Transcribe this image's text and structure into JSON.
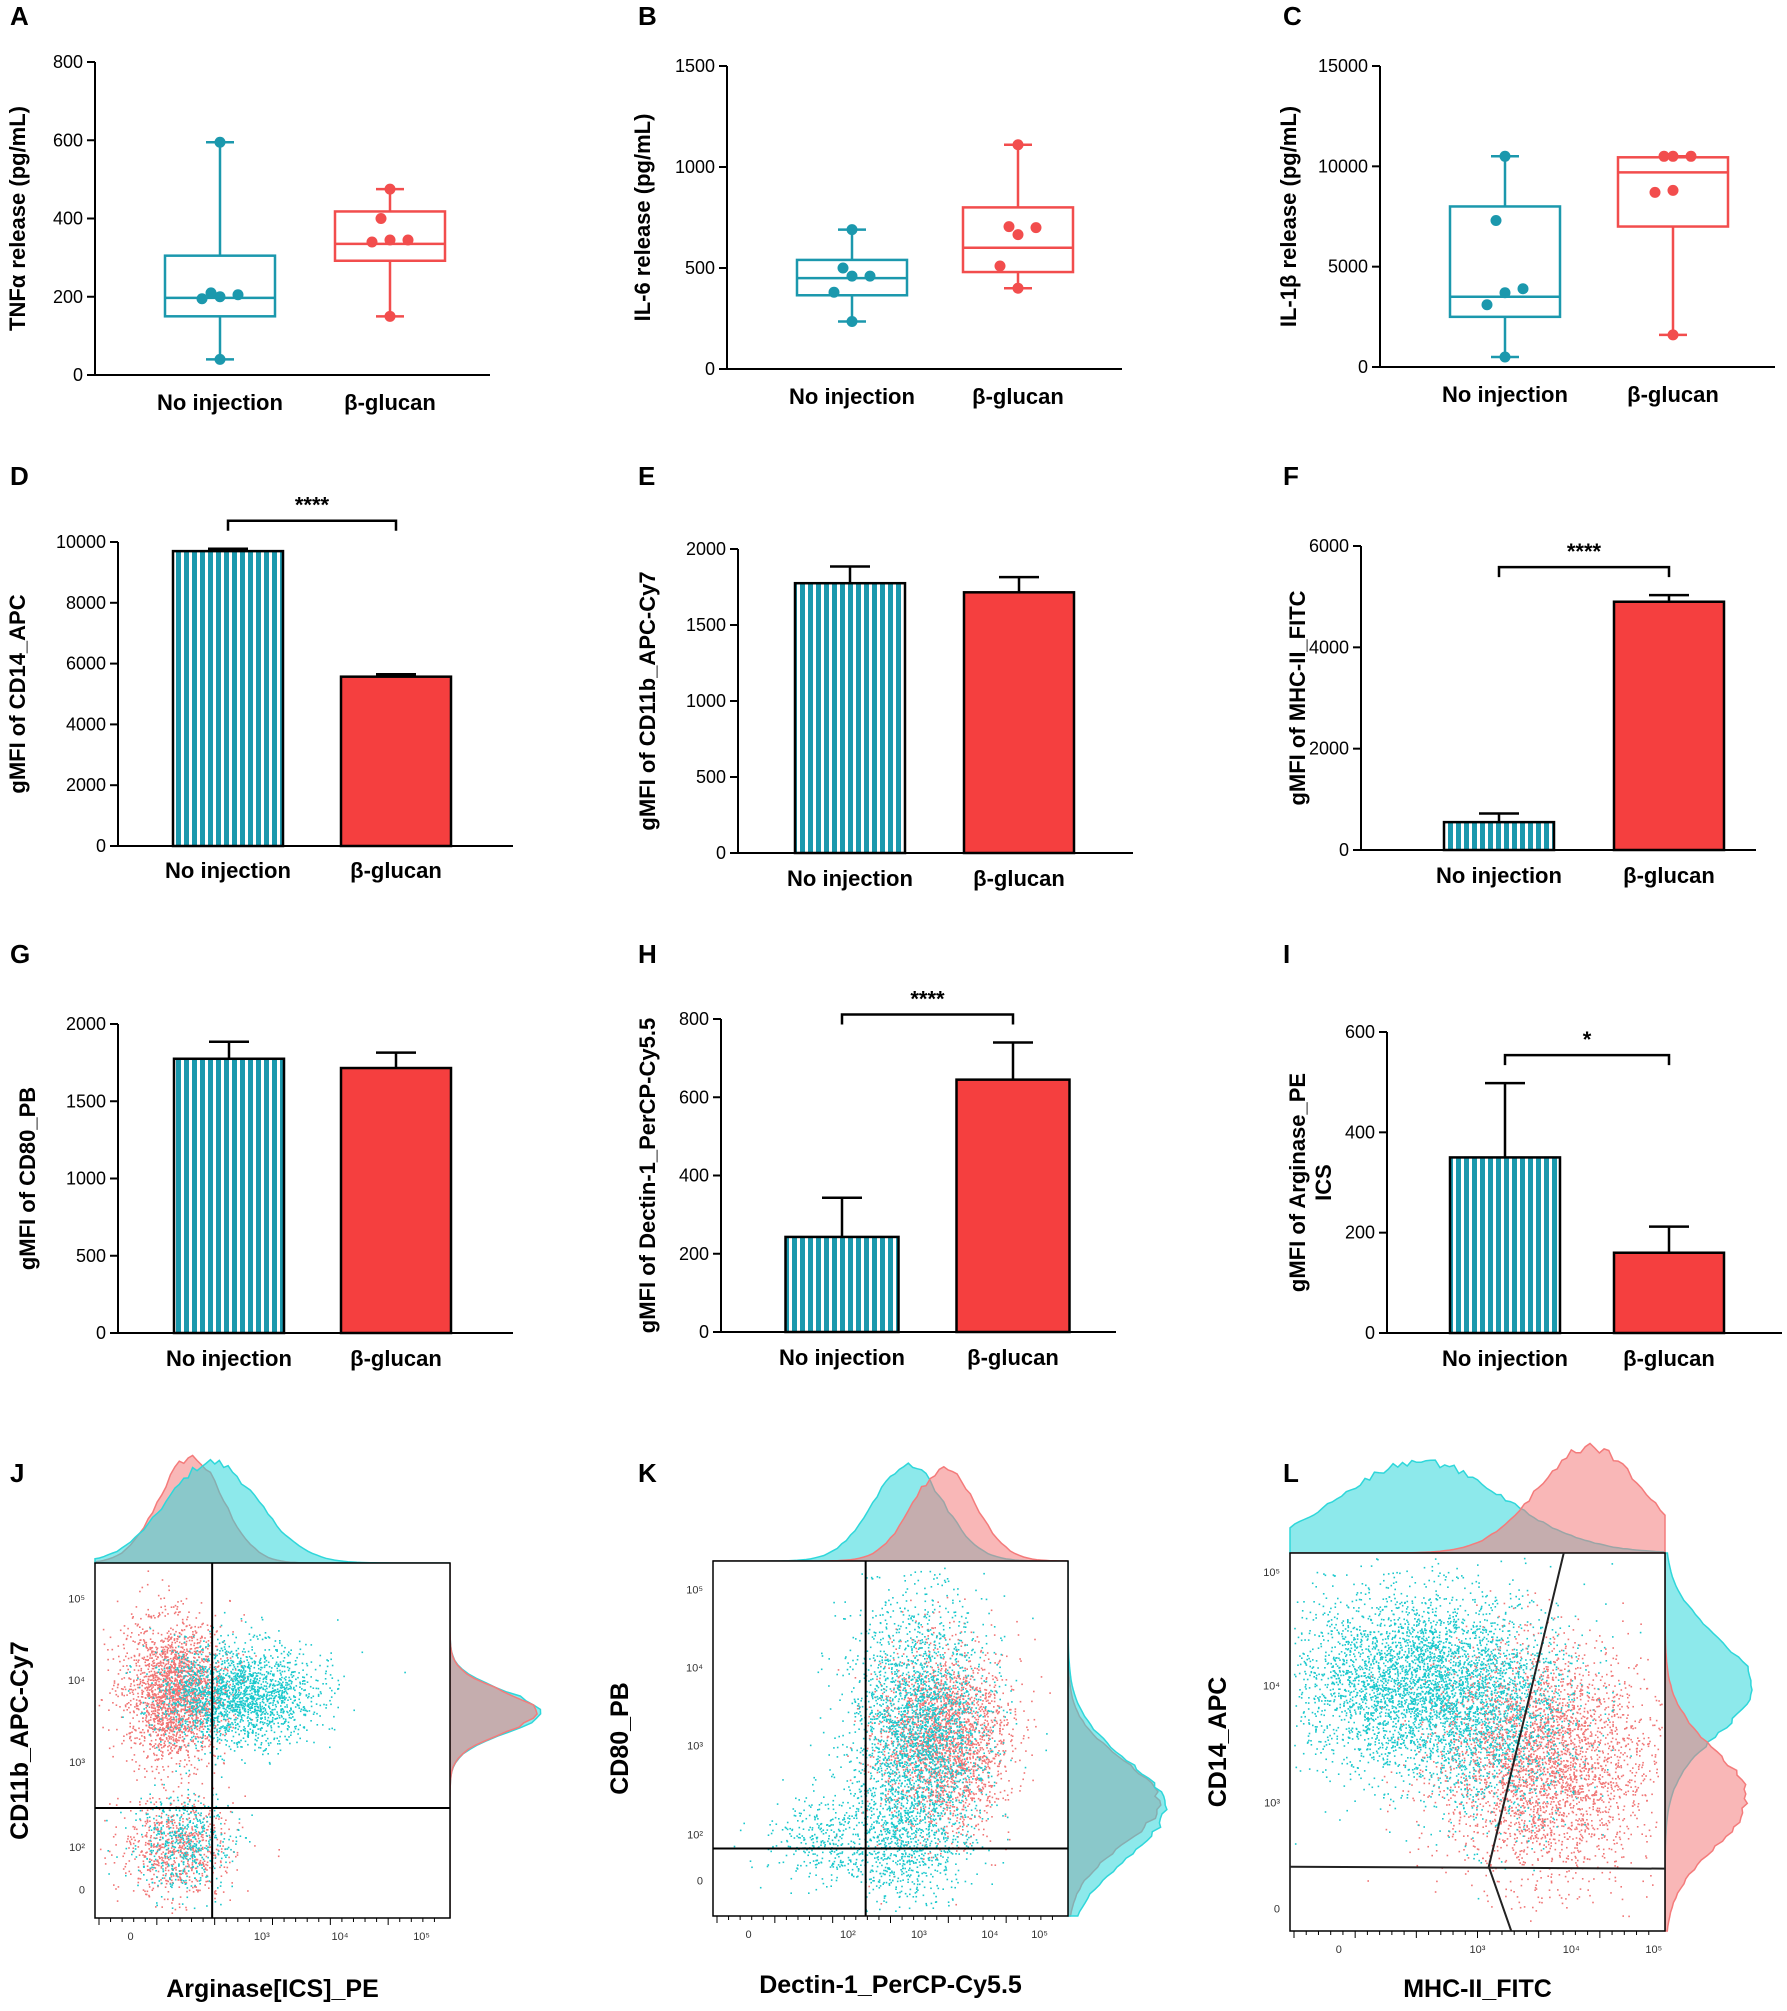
{
  "colors": {
    "teal": "#1b98ad",
    "red": "#f24d4d",
    "bar_red": "#f53f3f",
    "cyan_dots": "#19c8cc",
    "salmon_dots": "#f07575",
    "cyan_hist": "#2fd7da",
    "red_hist": "#f47b7b",
    "overlap_hist": "#8fa3a6"
  },
  "chart_data": [
    {
      "panel": "A",
      "type": "box",
      "ylabel": "TNFα release (pg/mL)",
      "ylim": [
        0,
        800
      ],
      "yticks": [
        0,
        200,
        400,
        600,
        800
      ],
      "groups": [
        {
          "name": "No injection",
          "color": "teal",
          "min": 40,
          "q1": 150,
          "median": 197,
          "q3": 305,
          "max": 595,
          "points": [
            40,
            195,
            200,
            205,
            210,
            595
          ]
        },
        {
          "name": "β-glucan",
          "color": "red",
          "min": 150,
          "q1": 292,
          "median": 335,
          "q3": 418,
          "max": 475,
          "points": [
            150,
            340,
            345,
            345,
            400,
            475
          ]
        }
      ]
    },
    {
      "panel": "B",
      "type": "box",
      "ylabel": "IL-6 release (pg/mL)",
      "ylim": [
        0,
        1500
      ],
      "yticks": [
        0,
        500,
        1000,
        1500
      ],
      "groups": [
        {
          "name": "No injection",
          "color": "teal",
          "min": 235,
          "q1": 365,
          "median": 450,
          "q3": 540,
          "max": 690,
          "points": [
            235,
            380,
            460,
            460,
            500,
            690
          ]
        },
        {
          "name": "β-glucan",
          "color": "red",
          "min": 400,
          "q1": 480,
          "median": 600,
          "q3": 800,
          "max": 1110,
          "points": [
            400,
            510,
            665,
            700,
            705,
            1110
          ]
        }
      ]
    },
    {
      "panel": "C",
      "type": "box",
      "ylabel": "IL-1β release (pg/mL)",
      "ylim": [
        0,
        15000
      ],
      "yticks": [
        0,
        5000,
        10000,
        15000
      ],
      "groups": [
        {
          "name": "No injection",
          "color": "teal",
          "min": 500,
          "q1": 2500,
          "median": 3500,
          "q3": 8000,
          "max": 10500,
          "points": [
            500,
            3100,
            3700,
            3900,
            7300,
            10500
          ]
        },
        {
          "name": "β-glucan",
          "color": "red",
          "min": 1600,
          "q1": 7000,
          "median": 9700,
          "q3": 10450,
          "max": 10500,
          "points": [
            1600,
            8700,
            8800,
            10500,
            10500,
            10500
          ]
        }
      ]
    },
    {
      "panel": "D",
      "type": "bar",
      "ylabel": "gMFI of CD14_APC",
      "ylim": [
        0,
        10000
      ],
      "yticks": [
        0,
        2000,
        4000,
        6000,
        8000,
        10000
      ],
      "categories": [
        "No injection",
        "β-glucan"
      ],
      "values": [
        9700,
        5570
      ],
      "errors": [
        80,
        80
      ],
      "significance": "****"
    },
    {
      "panel": "E",
      "type": "bar",
      "ylabel": "gMFI of CD11b_APC-Cy7",
      "ylim": [
        0,
        2000
      ],
      "yticks": [
        0,
        500,
        1000,
        1500,
        2000
      ],
      "categories": [
        "No injection",
        "β-glucan"
      ],
      "values": [
        1775,
        1715
      ],
      "errors": [
        110,
        100
      ],
      "significance": ""
    },
    {
      "panel": "F",
      "type": "bar",
      "ylabel": "gMFI of MHC-II_FITC",
      "ylim": [
        0,
        6000
      ],
      "yticks": [
        0,
        2000,
        4000,
        6000
      ],
      "categories": [
        "No injection",
        "β-glucan"
      ],
      "values": [
        550,
        4900
      ],
      "errors": [
        170,
        130
      ],
      "significance": "****"
    },
    {
      "panel": "G",
      "type": "bar",
      "ylabel": "gMFI of CD80_PB",
      "ylim": [
        0,
        2000
      ],
      "yticks": [
        0,
        500,
        1000,
        1500,
        2000
      ],
      "categories": [
        "No injection",
        "β-glucan"
      ],
      "values": [
        1775,
        1715
      ],
      "errors": [
        110,
        100
      ],
      "significance": ""
    },
    {
      "panel": "H",
      "type": "bar",
      "ylabel": "gMFI of Dectin-1_PerCP-Cy5.5",
      "ylim": [
        0,
        800
      ],
      "yticks": [
        0,
        200,
        400,
        600,
        800
      ],
      "categories": [
        "No injection",
        "β-glucan"
      ],
      "values": [
        243,
        645
      ],
      "errors": [
        100,
        95
      ],
      "significance": "****"
    },
    {
      "panel": "I",
      "type": "bar",
      "ylabel": "gMFI of Arginase_PE",
      "ylabel2": "ICS",
      "ylim": [
        0,
        600
      ],
      "yticks": [
        0,
        200,
        400,
        600
      ],
      "categories": [
        "No injection",
        "β-glucan"
      ],
      "values": [
        350,
        160
      ],
      "errors": [
        148,
        52
      ],
      "significance": "*"
    },
    {
      "panel": "J",
      "type": "scatter",
      "xlabel": "Arginase[ICS]_PE",
      "ylabel": "CD11b_APC-Cy7",
      "xticks": [
        "0",
        "10³",
        "10⁴",
        "10⁵"
      ],
      "yticks": [
        "0",
        "10²",
        "10³",
        "10⁴",
        "10⁵"
      ]
    },
    {
      "panel": "K",
      "type": "scatter",
      "xlabel": "Dectin-1_PerCP-Cy5.5",
      "ylabel": "CD80_PB",
      "xticks": [
        "0",
        "10²",
        "10³",
        "10⁴",
        "10⁵"
      ],
      "yticks": [
        "0",
        "10²",
        "10³",
        "10⁴",
        "10⁵"
      ]
    },
    {
      "panel": "L",
      "type": "scatter",
      "xlabel": "MHC-II_FITC",
      "ylabel": "CD14_APC",
      "xticks": [
        "0",
        "10³",
        "10⁴",
        "10⁵"
      ],
      "yticks": [
        "0",
        "10³",
        "10⁴",
        "10⁵"
      ]
    }
  ]
}
